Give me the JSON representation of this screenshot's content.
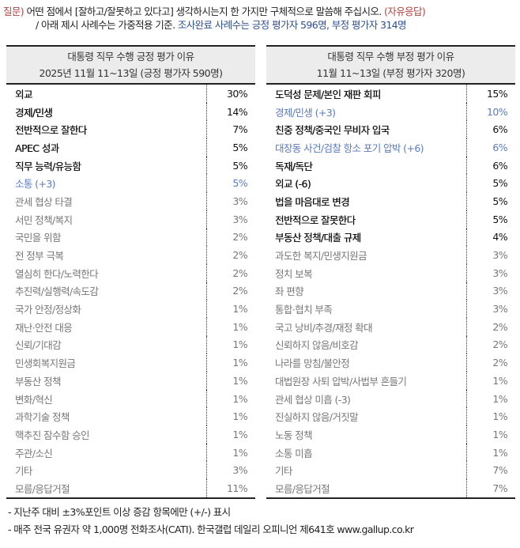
{
  "intro": {
    "question_label": "질문)",
    "question_text": "어떤 점에서 [잘하고/잘못하고 있다고] 생각하시는지 한 가지만 구체적으로 말씀해 주십시오.",
    "open_response": "(자유응답)",
    "weight_note": "/ 아래 제시 사례수는 가중적용 기준.",
    "sample_note": "조사완료 사례수는 긍정 평가자 596명, 부정 평가자 314명"
  },
  "positive": {
    "title": "대통령 직무 수행 긍정 평가 이유",
    "subtitle": "2025년 11월 11~13일 (긍정 평가자 590명)",
    "rows": [
      {
        "label": "외교",
        "value": "30%",
        "style": "dark"
      },
      {
        "label": "경제/민생",
        "value": "14%",
        "style": "dark"
      },
      {
        "label": "전반적으로 잘한다",
        "value": "7%",
        "style": "dark"
      },
      {
        "label": "APEC 성과",
        "value": "5%",
        "style": "dark"
      },
      {
        "label": "직무 능력/유능함",
        "value": "5%",
        "style": "dark"
      },
      {
        "label": "소통 (+3)",
        "value": "5%",
        "style": "blue"
      },
      {
        "label": "관세 협상 타결",
        "value": "3%",
        "style": "gray"
      },
      {
        "label": "서민 정책/복지",
        "value": "3%",
        "style": "gray"
      },
      {
        "label": "국민을 위함",
        "value": "2%",
        "style": "gray"
      },
      {
        "label": "전 정부 극복",
        "value": "2%",
        "style": "gray"
      },
      {
        "label": "열심히 한다/노력한다",
        "value": "2%",
        "style": "gray"
      },
      {
        "label": "추진력/실행력/속도감",
        "value": "2%",
        "style": "gray"
      },
      {
        "label": "국가 안정/정상화",
        "value": "1%",
        "style": "gray"
      },
      {
        "label": "재난·안전 대응",
        "value": "1%",
        "style": "gray"
      },
      {
        "label": "신뢰/기대감",
        "value": "1%",
        "style": "gray"
      },
      {
        "label": "민생회복지원금",
        "value": "1%",
        "style": "gray"
      },
      {
        "label": "부동산 정책",
        "value": "1%",
        "style": "gray"
      },
      {
        "label": "변화/혁신",
        "value": "1%",
        "style": "gray"
      },
      {
        "label": "과학기술 정책",
        "value": "1%",
        "style": "gray"
      },
      {
        "label": "핵추진 잠수함 승인",
        "value": "1%",
        "style": "gray"
      },
      {
        "label": "주관/소신",
        "value": "1%",
        "style": "gray"
      },
      {
        "label": "기타",
        "value": "3%",
        "style": "gray"
      },
      {
        "label": "모름/응답거절",
        "value": "11%",
        "style": "gray"
      }
    ]
  },
  "negative": {
    "title": "대통령 직무 수행 부정 평가 이유",
    "subtitle": "11월 11~13일 (부정 평가자 320명)",
    "rows": [
      {
        "label": "도덕성 문제/본인 재판 회피",
        "value": "15%",
        "style": "dark"
      },
      {
        "label": "경제/민생 (+3)",
        "value": "10%",
        "style": "blue"
      },
      {
        "label": "친중 정책/중국인 무비자 입국",
        "value": "6%",
        "style": "dark"
      },
      {
        "label": "대장동 사건/검찰 항소 포기 압박 (+6)",
        "value": "6%",
        "style": "blue"
      },
      {
        "label": "독재/독단",
        "value": "6%",
        "style": "dark"
      },
      {
        "label": "외교 (-6)",
        "value": "5%",
        "style": "dark"
      },
      {
        "label": "법을 마음대로 변경",
        "value": "5%",
        "style": "dark"
      },
      {
        "label": "전반적으로 잘못한다",
        "value": "5%",
        "style": "dark"
      },
      {
        "label": "부동산 정책/대출 규제",
        "value": "4%",
        "style": "dark"
      },
      {
        "label": "과도한 복지/민생지원금",
        "value": "3%",
        "style": "gray"
      },
      {
        "label": "정치 보복",
        "value": "3%",
        "style": "gray"
      },
      {
        "label": "좌 편향",
        "value": "3%",
        "style": "gray"
      },
      {
        "label": "통합·협치 부족",
        "value": "3%",
        "style": "gray"
      },
      {
        "label": "국고 낭비/추경/재정 확대",
        "value": "2%",
        "style": "gray"
      },
      {
        "label": "신뢰하지 않음/비호감",
        "value": "2%",
        "style": "gray"
      },
      {
        "label": "나라를 망침/불안정",
        "value": "2%",
        "style": "gray"
      },
      {
        "label": "대법원장 사퇴 압박/사법부 흔들기",
        "value": "1%",
        "style": "gray"
      },
      {
        "label": "관세 협상 미흡 (-3)",
        "value": "1%",
        "style": "gray"
      },
      {
        "label": "진실하지 않음/거짓말",
        "value": "1%",
        "style": "gray"
      },
      {
        "label": "노동 정책",
        "value": "1%",
        "style": "gray"
      },
      {
        "label": "소통 미흡",
        "value": "1%",
        "style": "gray"
      },
      {
        "label": "기타",
        "value": "7%",
        "style": "gray"
      },
      {
        "label": "모름/응답거절",
        "value": "7%",
        "style": "gray"
      }
    ]
  },
  "footnotes": [
    "- 지난주 대비 ±3%포인트 이상 증감 항목에만 (+/-) 표시",
    "- 매주 전국 유권자 약 1,000명 전화조사(CATI). 한국갤럽 데일리 오피니언 제641호 www.gallup.co.kr"
  ],
  "colors": {
    "question_accent": "#b0443f",
    "sample_note": "#2f4f8f",
    "increase_item": "#5b7bbf",
    "minor_item": "#777777",
    "header_bg": "#ececec"
  }
}
